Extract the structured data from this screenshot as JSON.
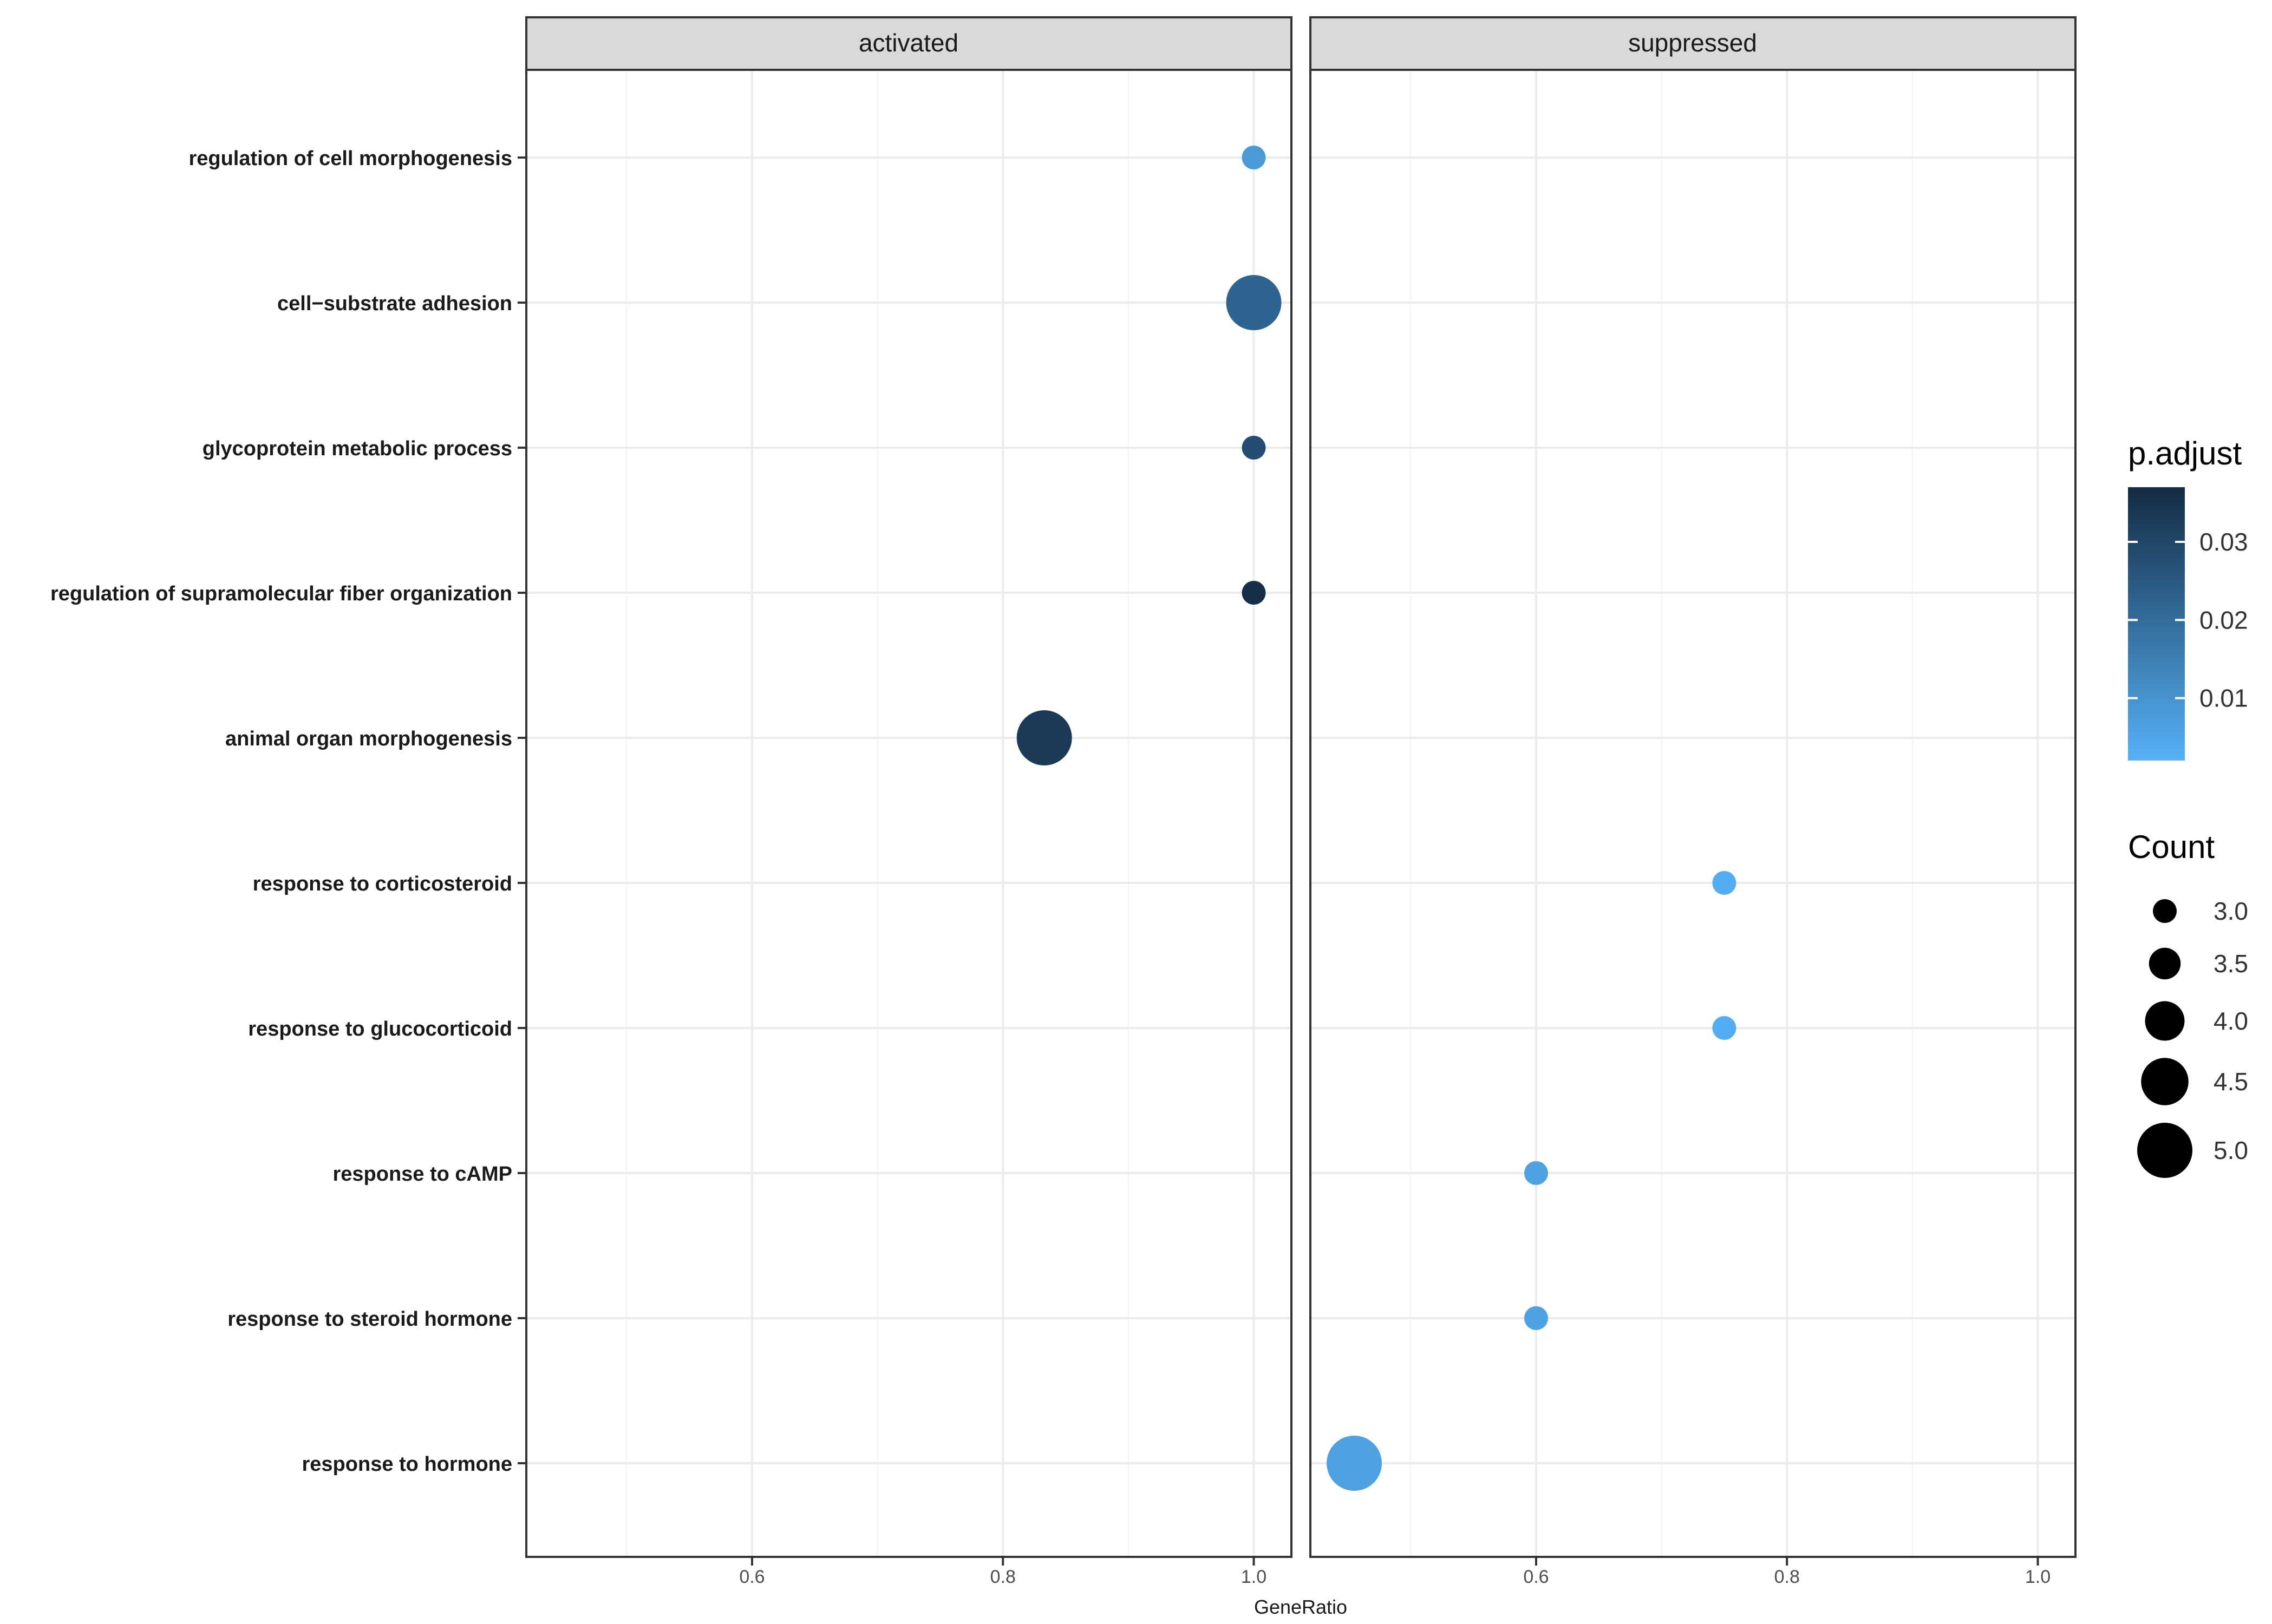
{
  "chart_data": {
    "type": "scatter",
    "xlabel": "GeneRatio",
    "ylabel": "",
    "xlim": [
      0.42,
      1.03
    ],
    "x_ticks": [
      0.6,
      0.8,
      1.0
    ],
    "x_tick_labels": [
      "0.6",
      "0.8",
      "1.0"
    ],
    "grid": true,
    "legend_position": "right",
    "panels": [
      "activated",
      "suppressed"
    ],
    "categories": [
      "regulation of cell morphogenesis",
      "cell−substrate adhesion",
      "glycoprotein metabolic process",
      "regulation of supramolecular fiber organization",
      "animal organ morphogenesis",
      "response to corticosteroid",
      "response to glucocorticoid",
      "response to cAMP",
      "response to steroid hormone",
      "response to hormone"
    ],
    "points": [
      {
        "panel": "activated",
        "term": "regulation of cell morphogenesis",
        "gene_ratio": 1.0,
        "count": 3,
        "p_adjust": 0.008
      },
      {
        "panel": "activated",
        "term": "cell−substrate adhesion",
        "gene_ratio": 1.0,
        "count": 5,
        "p_adjust": 0.022
      },
      {
        "panel": "activated",
        "term": "glycoprotein metabolic process",
        "gene_ratio": 1.0,
        "count": 3,
        "p_adjust": 0.028
      },
      {
        "panel": "activated",
        "term": "regulation of supramolecular fiber organization",
        "gene_ratio": 1.0,
        "count": 3,
        "p_adjust": 0.036
      },
      {
        "panel": "activated",
        "term": "animal organ morphogenesis",
        "gene_ratio": 0.833,
        "count": 5,
        "p_adjust": 0.033
      },
      {
        "panel": "suppressed",
        "term": "response to corticosteroid",
        "gene_ratio": 0.75,
        "count": 3,
        "p_adjust": 0.003
      },
      {
        "panel": "suppressed",
        "term": "response to glucocorticoid",
        "gene_ratio": 0.75,
        "count": 3,
        "p_adjust": 0.003
      },
      {
        "panel": "suppressed",
        "term": "response to cAMP",
        "gene_ratio": 0.6,
        "count": 3,
        "p_adjust": 0.006
      },
      {
        "panel": "suppressed",
        "term": "response to steroid hormone",
        "gene_ratio": 0.6,
        "count": 3,
        "p_adjust": 0.006
      },
      {
        "panel": "suppressed",
        "term": "response to hormone",
        "gene_ratio": 0.455,
        "count": 5,
        "p_adjust": 0.006
      }
    ],
    "color_legend": {
      "title": "p.adjust",
      "min": 0.002,
      "max": 0.037,
      "ticks": [
        0.01,
        0.02,
        0.03
      ],
      "tick_labels": [
        "0.01",
        "0.02",
        "0.03"
      ],
      "low_color": "#56B1F7",
      "high_color": "#132B43"
    },
    "size_legend": {
      "title": "Count",
      "values": [
        3.0,
        3.5,
        4.0,
        4.5,
        5.0
      ],
      "labels": [
        "3.0",
        "3.5",
        "4.0",
        "4.5",
        "5.0"
      ]
    }
  }
}
